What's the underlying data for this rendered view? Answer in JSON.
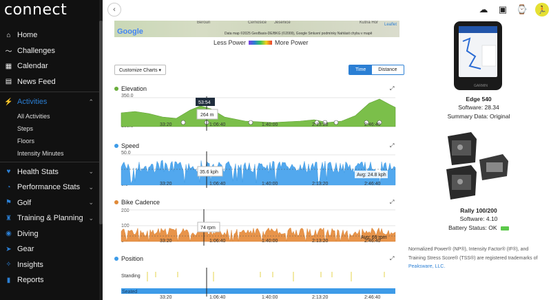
{
  "app": {
    "logo": "connect"
  },
  "sidebar": {
    "items": [
      {
        "label": "Home",
        "icon": "home-icon"
      },
      {
        "label": "Challenges",
        "icon": "challenges-icon"
      },
      {
        "label": "Calendar",
        "icon": "calendar-icon"
      },
      {
        "label": "News Feed",
        "icon": "newsfeed-icon"
      }
    ],
    "activities": {
      "label": "Activities",
      "icon": "activities-icon"
    },
    "sub_items": [
      "All Activities",
      "Steps",
      "Floors",
      "Intensity Minutes"
    ],
    "groups": [
      {
        "label": "Health Stats",
        "icon": "heart-icon"
      },
      {
        "label": "Performance Stats",
        "icon": "performance-icon"
      },
      {
        "label": "Golf",
        "icon": "golf-icon"
      },
      {
        "label": "Training & Planning",
        "icon": "training-icon"
      }
    ],
    "bottom": [
      {
        "label": "Diving",
        "icon": "diving-icon"
      },
      {
        "label": "Gear",
        "icon": "gear-icon"
      },
      {
        "label": "Insights",
        "icon": "insights-icon"
      },
      {
        "label": "Reports",
        "icon": "reports-icon"
      }
    ]
  },
  "map": {
    "places": [
      "Beroun",
      "Černošice",
      "Jesenice",
      "Kutná Hor"
    ],
    "google": "Google",
    "attribution": "Data map ©2025 GeoBasis-DE/BKG (©2009), Google   Smluvní podmínky   Nahlásit chybu v mapě",
    "leaflet": "Leaflet"
  },
  "power_legend": {
    "less": "Less Power",
    "more": "More Power"
  },
  "controls": {
    "customize": "Customize Charts ▾",
    "time": "Time",
    "distance": "Distance"
  },
  "x_ticks": [
    "33:20",
    "1:06:40",
    "1:40:00",
    "2:13:20",
    "2:46:40"
  ],
  "charts": {
    "elevation": {
      "title": "Elevation",
      "color": "#6aae3c",
      "ymax": "350.0",
      "ymin": "150.0",
      "tooltip_time": "53:54",
      "tooltip_value": "264 m"
    },
    "speed": {
      "title": "Speed",
      "color": "#3d9be8",
      "ymax": "50.0",
      "ymin": "0.0",
      "tooltip_value": "35.6 kph",
      "avg": "Avg: 24.8 kph"
    },
    "cadence": {
      "title": "Bike Cadence",
      "color": "#e08a38",
      "ymax": "200",
      "ymid": "100",
      "ymin": "0",
      "tooltip_value": "74 rpm",
      "avg": "Avg: 69 rpm"
    },
    "position": {
      "title": "Position",
      "color": "#3d9be8",
      "standing": "Standing",
      "seated": "Seated"
    }
  },
  "devices": [
    {
      "name": "Edge 540",
      "lines": [
        "Software: 28.34",
        "Summary Data: Original"
      ],
      "icon": "garmin-edge-device-icon"
    },
    {
      "name": "Rally 100/200",
      "lines": [
        "Software: 4.10",
        "Battery Status: OK"
      ],
      "icon": "power-pedals-icon",
      "battery_color": "#5cc94a"
    }
  ],
  "footnote": {
    "text": "Normalized Power® (NP®), Intensity Factor® (IF®), and Training Stress Score® (TSS®) are registered trademarks of",
    "link": "Peaksware, LLC."
  }
}
